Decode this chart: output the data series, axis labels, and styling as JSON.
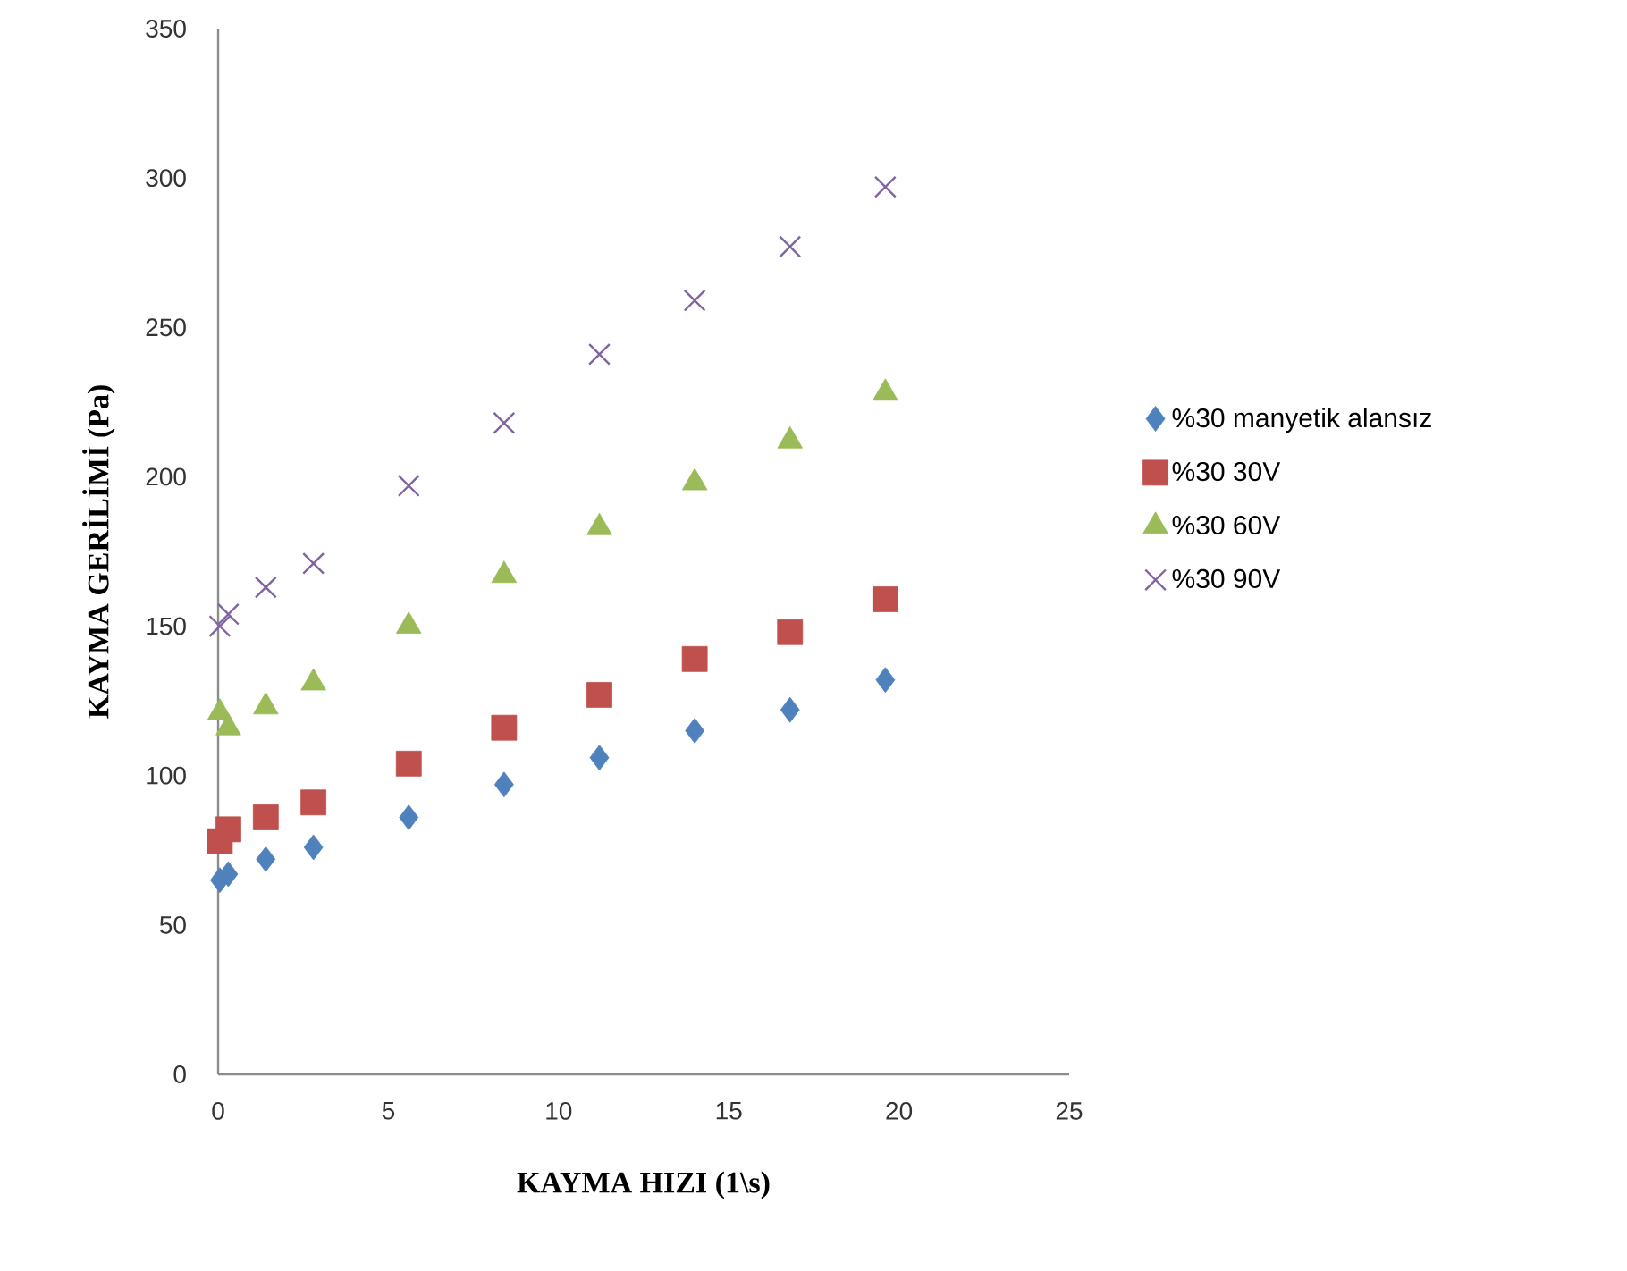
{
  "chart_data": {
    "type": "scatter",
    "xlabel": "KAYMA HIZI (1\\s)",
    "ylabel": "KAYMA GERİLİMİ (Pa)",
    "x": [
      0.05,
      0.3,
      1.4,
      2.8,
      5.6,
      8.4,
      11.2,
      14,
      16.8,
      19.6
    ],
    "series": [
      {
        "name": "%30 manyetik alansız",
        "color": "#4f81bd",
        "marker": "diamond",
        "values": [
          65,
          67,
          72,
          76,
          86,
          97,
          106,
          115,
          122,
          132
        ]
      },
      {
        "name": "%30 30V",
        "color": "#c0504d",
        "marker": "square",
        "values": [
          78,
          82,
          86,
          91,
          104,
          116,
          127,
          139,
          148,
          159
        ]
      },
      {
        "name": "%30 60V",
        "color": "#9bbb59",
        "marker": "triangle",
        "values": [
          121,
          116,
          123,
          131,
          150,
          167,
          183,
          198,
          212,
          228
        ]
      },
      {
        "name": "%30 90V",
        "color": "#8064a2",
        "marker": "cross",
        "values": [
          150,
          154,
          163,
          171,
          197,
          218,
          241,
          259,
          277,
          297
        ]
      }
    ],
    "xlim": [
      0,
      25
    ],
    "ylim": [
      0,
      350
    ],
    "xticks": [
      0,
      5,
      10,
      15,
      20,
      25
    ],
    "yticks": [
      0,
      50,
      100,
      150,
      200,
      250,
      300,
      350
    ],
    "grid": false,
    "legend": "right"
  }
}
